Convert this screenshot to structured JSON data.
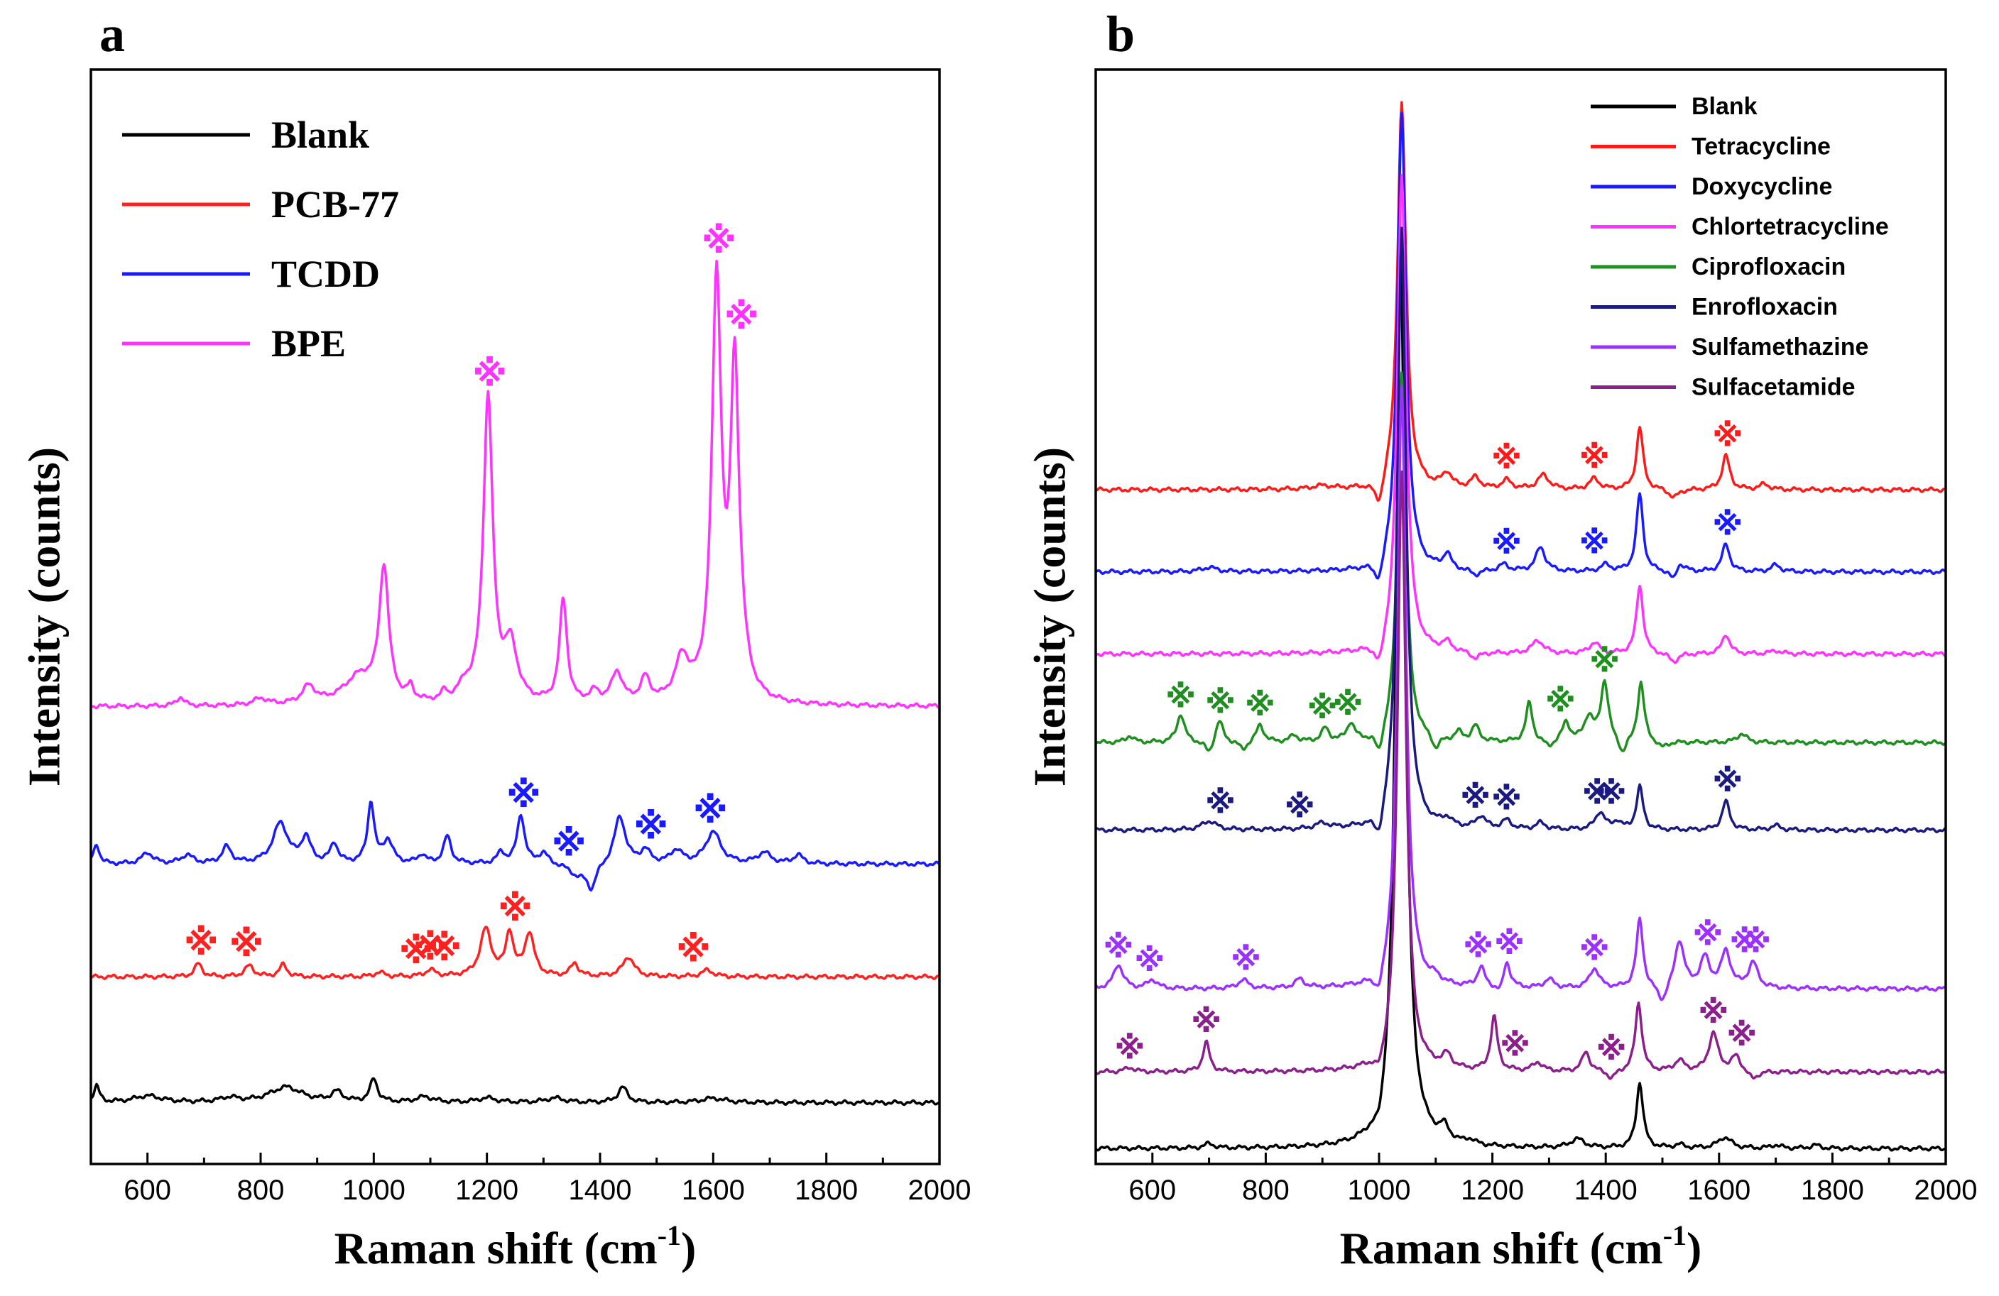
{
  "figure": {
    "panel_a_letter": "a",
    "panel_b_letter": "b"
  },
  "chart_data": [
    {
      "panel": "a",
      "type": "line",
      "title": "",
      "xlabel_main": "Raman shift (cm",
      "xlabel_sup": "-1",
      "xlabel_close": ")",
      "ylabel": "Intensity (counts)",
      "xlim": [
        500,
        2000
      ],
      "ylim": [
        0,
        100
      ],
      "xticks": [
        600,
        800,
        1000,
        1200,
        1400,
        1600,
        1800,
        2000
      ],
      "yticks_shown": false,
      "legend_position": "top-left",
      "marker_symbol": "※",
      "series": [
        {
          "name": "Blank",
          "color": "#000000",
          "baseline": 5.6,
          "peaks": [
            [
              510,
              1.5,
              6
            ],
            [
              600,
              0.6,
              30
            ],
            [
              745,
              0.4,
              18
            ],
            [
              845,
              1.4,
              35
            ],
            [
              935,
              0.9,
              12
            ],
            [
              1000,
              2.1,
              8
            ],
            [
              1090,
              0.5,
              18
            ],
            [
              1200,
              0.4,
              20
            ],
            [
              1320,
              0.4,
              20
            ],
            [
              1440,
              1.4,
              10
            ],
            [
              1600,
              0.4,
              25
            ]
          ],
          "markers": []
        },
        {
          "name": "PCB-77",
          "color": "#ff2020",
          "baseline": 17.1,
          "peaks": [
            [
              690,
              1.2,
              8
            ],
            [
              780,
              1.0,
              10
            ],
            [
              840,
              1.1,
              8
            ],
            [
              1010,
              0.4,
              10
            ],
            [
              1100,
              0.6,
              10
            ],
            [
              1198,
              4.3,
              12
            ],
            [
              1240,
              3.9,
              8
            ],
            [
              1275,
              3.9,
              10
            ],
            [
              1355,
              1.2,
              8
            ],
            [
              1450,
              1.8,
              12
            ],
            [
              1590,
              0.6,
              12
            ]
          ],
          "markers": [
            695,
            775,
            1075,
            1100,
            1125,
            1250,
            1565
          ]
        },
        {
          "name": "TCDD",
          "color": "#1a1aff",
          "baseline": 27.4,
          "peaks": [
            [
              510,
              1.8,
              6
            ],
            [
              600,
              1.0,
              12
            ],
            [
              670,
              0.8,
              12
            ],
            [
              740,
              1.5,
              10
            ],
            [
              835,
              3.7,
              16
            ],
            [
              880,
              2.3,
              10
            ],
            [
              930,
              1.8,
              8
            ],
            [
              995,
              5.6,
              7
            ],
            [
              1025,
              2.1,
              10
            ],
            [
              1085,
              0.8,
              8
            ],
            [
              1130,
              2.5,
              8
            ],
            [
              1225,
              1.0,
              8
            ],
            [
              1260,
              4.5,
              8
            ],
            [
              1300,
              1.0,
              10
            ],
            [
              1360,
              -1.0,
              18
            ],
            [
              1435,
              4.4,
              12
            ],
            [
              1385,
              -2.2,
              10
            ],
            [
              1480,
              1.2,
              10
            ],
            [
              1535,
              1.2,
              12
            ],
            [
              1600,
              2.9,
              16
            ],
            [
              1690,
              1.0,
              14
            ],
            [
              1750,
              0.8,
              10
            ]
          ],
          "markers": [
            1265,
            1345,
            1490,
            1595
          ]
        },
        {
          "name": "BPE",
          "color": "#ff33ff",
          "baseline": 41.8,
          "peaks": [
            [
              658,
              0.8,
              8
            ],
            [
              800,
              0.6,
              15
            ],
            [
              885,
              1.6,
              14
            ],
            [
              975,
              2.5,
              35
            ],
            [
              1018,
              12.0,
              10
            ],
            [
              1065,
              1.2,
              6
            ],
            [
              1125,
              0.8,
              6
            ],
            [
              1160,
              1.2,
              12
            ],
            [
              1202,
              28.0,
              10
            ],
            [
              1242,
              5.0,
              14
            ],
            [
              1335,
              9.5,
              8
            ],
            [
              1390,
              1.0,
              10
            ],
            [
              1430,
              2.8,
              12
            ],
            [
              1480,
              2.2,
              10
            ],
            [
              1545,
              3.8,
              15
            ],
            [
              1606,
              38.0,
              10
            ],
            [
              1638,
              29.0,
              9
            ],
            [
              1650,
              2.0,
              15
            ]
          ],
          "markers": [
            1205,
            1610,
            1650
          ]
        }
      ]
    },
    {
      "panel": "b",
      "type": "line",
      "title": "",
      "xlabel_main": "Raman shift (cm",
      "xlabel_sup": "-1",
      "xlabel_close": ")",
      "ylabel": "Intensity (counts)",
      "xlim": [
        500,
        2000
      ],
      "ylim": [
        0,
        100
      ],
      "xticks": [
        600,
        800,
        1000,
        1200,
        1400,
        1600,
        1800,
        2000
      ],
      "yticks_shown": false,
      "legend_position": "top-right",
      "marker_symbol": "※",
      "series": [
        {
          "name": "Blank",
          "color": "#000000",
          "baseline": 1.4,
          "peaks": [
            [
              700,
              0.4,
              10
            ],
            [
              1000,
              -1.5,
              10
            ],
            [
              1038,
              82.0,
              10
            ],
            [
              1115,
              1.2,
              10
            ],
            [
              1160,
              0.4,
              10
            ],
            [
              1350,
              0.8,
              15
            ],
            [
              1460,
              6.0,
              7
            ],
            [
              1530,
              0.3,
              10
            ],
            [
              1610,
              1.0,
              14
            ],
            [
              1700,
              0.3,
              10
            ],
            [
              1770,
              0.3,
              10
            ]
          ],
          "markers": []
        },
        {
          "name": "Tetracycline",
          "color": "#ff1a1a",
          "baseline": 61.6,
          "peaks": [
            [
              900,
              0.3,
              20
            ],
            [
              1000,
              -2.5,
              10
            ],
            [
              1040,
              35.5,
              9
            ],
            [
              1120,
              1.3,
              10
            ],
            [
              1170,
              1.0,
              10
            ],
            [
              1225,
              0.8,
              10
            ],
            [
              1290,
              1.3,
              12
            ],
            [
              1380,
              1.0,
              10
            ],
            [
              1460,
              5.7,
              7
            ],
            [
              1520,
              -0.8,
              10
            ],
            [
              1612,
              3.1,
              8
            ],
            [
              1680,
              0.5,
              10
            ]
          ],
          "markers": [
            1225,
            1380,
            1615
          ]
        },
        {
          "name": "Doxycycline",
          "color": "#1a1aff",
          "baseline": 54.1,
          "peaks": [
            [
              700,
              0.4,
              15
            ],
            [
              1000,
              -2.4,
              10
            ],
            [
              1040,
              42.0,
              9
            ],
            [
              1120,
              1.4,
              8
            ],
            [
              1170,
              -0.5,
              10
            ],
            [
              1220,
              0.6,
              10
            ],
            [
              1285,
              2.2,
              10
            ],
            [
              1400,
              0.6,
              10
            ],
            [
              1460,
              7.1,
              7
            ],
            [
              1520,
              -1.2,
              8
            ],
            [
              1530,
              1.0,
              10
            ],
            [
              1612,
              2.5,
              8
            ],
            [
              1700,
              0.6,
              10
            ]
          ],
          "markers": [
            1225,
            1380,
            1615
          ]
        },
        {
          "name": "Chlortetracycline",
          "color": "#ff33ff",
          "baseline": 46.6,
          "peaks": [
            [
              1000,
              -2.5,
              10
            ],
            [
              1040,
              44.0,
              9
            ],
            [
              1120,
              0.8,
              10
            ],
            [
              1170,
              -0.6,
              10
            ],
            [
              1280,
              1.2,
              12
            ],
            [
              1380,
              1.0,
              10
            ],
            [
              1460,
              6.3,
              7
            ],
            [
              1520,
              -0.8,
              10
            ],
            [
              1612,
              1.8,
              8
            ],
            [
              1700,
              0.3,
              10
            ]
          ],
          "markers": []
        },
        {
          "name": "Ciprofloxacin",
          "color": "#1f8f1f",
          "baseline": 38.5,
          "peaks": [
            [
              560,
              0.6,
              8
            ],
            [
              650,
              2.6,
              8
            ],
            [
              700,
              -1.2,
              8
            ],
            [
              718,
              2.1,
              8
            ],
            [
              760,
              -0.8,
              8
            ],
            [
              790,
              1.6,
              8
            ],
            [
              850,
              0.6,
              8
            ],
            [
              905,
              1.2,
              8
            ],
            [
              950,
              1.6,
              8
            ],
            [
              1000,
              -2.2,
              8
            ],
            [
              1040,
              34.0,
              9
            ],
            [
              1100,
              -1.2,
              8
            ],
            [
              1140,
              0.8,
              8
            ],
            [
              1170,
              1.4,
              8
            ],
            [
              1265,
              3.6,
              7
            ],
            [
              1300,
              -0.6,
              10
            ],
            [
              1330,
              1.8,
              8
            ],
            [
              1370,
              2.2,
              10
            ],
            [
              1398,
              5.5,
              8
            ],
            [
              1430,
              -1.4,
              8
            ],
            [
              1462,
              5.5,
              7
            ],
            [
              1500,
              -0.6,
              10
            ],
            [
              1640,
              0.8,
              10
            ]
          ],
          "markers": [
            650,
            720,
            790,
            900,
            945,
            1320,
            1398
          ]
        },
        {
          "name": "Enrofloxacin",
          "color": "#1a1a80",
          "baseline": 30.5,
          "peaks": [
            [
              700,
              0.8,
              15
            ],
            [
              900,
              0.5,
              15
            ],
            [
              1000,
              -2.4,
              10
            ],
            [
              1040,
              55.0,
              9
            ],
            [
              1120,
              0.7,
              10
            ],
            [
              1180,
              1.1,
              10
            ],
            [
              1225,
              0.8,
              10
            ],
            [
              1285,
              0.6,
              10
            ],
            [
              1390,
              1.6,
              10
            ],
            [
              1420,
              0.7,
              8
            ],
            [
              1460,
              3.9,
              7
            ],
            [
              1612,
              2.6,
              8
            ],
            [
              1700,
              0.4,
              10
            ]
          ],
          "markers": [
            720,
            860,
            1170,
            1225,
            1385,
            1410,
            1615
          ]
        },
        {
          "name": "Sulfamethazine",
          "color": "#9b30ff",
          "baseline": 16.0,
          "peaks": [
            [
              540,
              2.2,
              10
            ],
            [
              600,
              0.8,
              10
            ],
            [
              760,
              0.8,
              10
            ],
            [
              860,
              0.8,
              10
            ],
            [
              1000,
              -2.2,
              10
            ],
            [
              1040,
              55.0,
              9
            ],
            [
              1100,
              0.5,
              10
            ],
            [
              1180,
              1.8,
              8
            ],
            [
              1215,
              -1.0,
              10
            ],
            [
              1225,
              2.7,
              8
            ],
            [
              1300,
              0.8,
              10
            ],
            [
              1380,
              1.8,
              10
            ],
            [
              1460,
              6.3,
              7
            ],
            [
              1500,
              -1.6,
              10
            ],
            [
              1530,
              4.4,
              10
            ],
            [
              1575,
              2.7,
              10
            ],
            [
              1612,
              3.3,
              10
            ],
            [
              1660,
              2.3,
              10
            ]
          ],
          "markers": [
            540,
            595,
            765,
            1175,
            1230,
            1380,
            1580,
            1645,
            1665
          ]
        },
        {
          "name": "Sulfacetamide",
          "color": "#8b1f8b",
          "baseline": 8.4,
          "peaks": [
            [
              560,
              0.4,
              10
            ],
            [
              695,
              2.7,
              7
            ],
            [
              1000,
              -1.6,
              10
            ],
            [
              1040,
              55.0,
              9
            ],
            [
              1120,
              1.2,
              10
            ],
            [
              1203,
              4.9,
              7
            ],
            [
              1280,
              0.8,
              10
            ],
            [
              1365,
              1.8,
              8
            ],
            [
              1410,
              -0.8,
              8
            ],
            [
              1458,
              6.3,
              7
            ],
            [
              1530,
              1.0,
              10
            ],
            [
              1590,
              3.5,
              10
            ],
            [
              1630,
              1.4,
              10
            ],
            [
              1660,
              -0.8,
              10
            ]
          ],
          "markers": [
            560,
            695,
            1240,
            1410,
            1590,
            1640
          ]
        }
      ]
    }
  ]
}
